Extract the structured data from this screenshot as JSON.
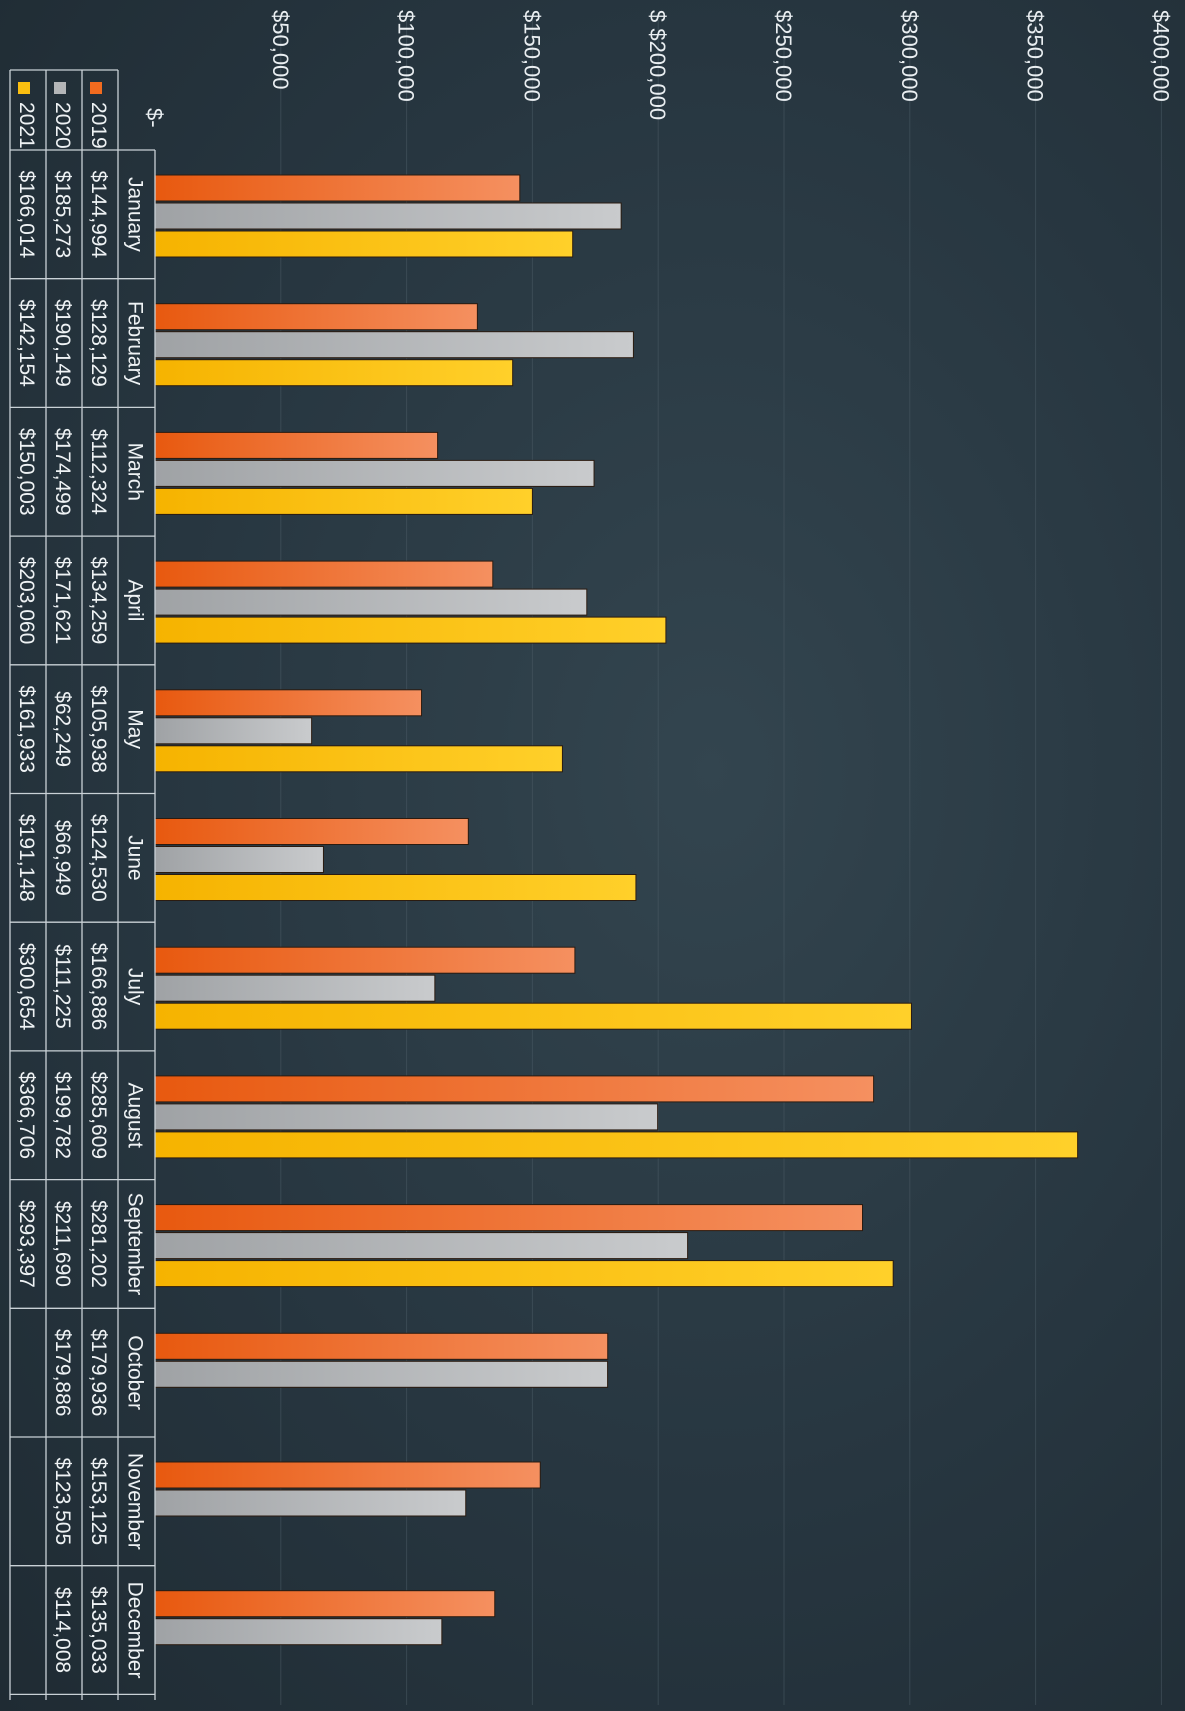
{
  "chart_data": {
    "type": "bar",
    "orientation": "rotated-90-clockwise",
    "title": "",
    "xlabel": "",
    "ylabel": "",
    "ylim": [
      0,
      400000
    ],
    "y_ticks": [
      0,
      50000,
      100000,
      150000,
      200000,
      250000,
      300000,
      350000,
      400000
    ],
    "y_tick_labels": [
      "$-",
      "$50,000",
      "$100,000",
      "$150,000",
      "$ $200,000",
      "$250,000",
      "$300,000",
      "$350,000",
      "$400,000"
    ],
    "grid": true,
    "legend_placement": "data table",
    "categories": [
      "January",
      "February",
      "March",
      "April",
      "May",
      "June",
      "July",
      "August",
      "September",
      "October",
      "November",
      "December"
    ],
    "series": [
      {
        "name": "2019",
        "color": "#f26b1f",
        "values": [
          144994,
          128129,
          112324,
          134259,
          105938,
          124530,
          166886,
          285609,
          281202,
          179936,
          153125,
          135033
        ],
        "labels": [
          "$144,994",
          "$128,129",
          "$112,324",
          "$134,259",
          "$105,938",
          "$124,530",
          "$166,886",
          "$285,609",
          "$281,202",
          "$179,936",
          "$153,125",
          "$135,033"
        ]
      },
      {
        "name": "2020",
        "color": "#b4b6b8",
        "values": [
          185273,
          190149,
          174499,
          171621,
          62249,
          66949,
          111225,
          199782,
          211690,
          179886,
          123505,
          114008
        ],
        "labels": [
          "$185,273",
          "$190,149",
          "$174,499",
          "$171,621",
          "$62,249",
          "$66,949",
          "$111,225",
          "$199,782",
          "$211,690",
          "$179,886",
          "$123,505",
          "$114,008"
        ]
      },
      {
        "name": "2021",
        "color": "#fbbf10",
        "values": [
          166014,
          142154,
          150003,
          203060,
          161933,
          191148,
          300654,
          366706,
          293397,
          null,
          null,
          null
        ],
        "labels": [
          "$166,014",
          "$142,154",
          "$150,003",
          "$203,060",
          "$161,933",
          "$191,148",
          "$300,654",
          "$366,706",
          "$293,397",
          "",
          "",
          ""
        ]
      }
    ]
  }
}
